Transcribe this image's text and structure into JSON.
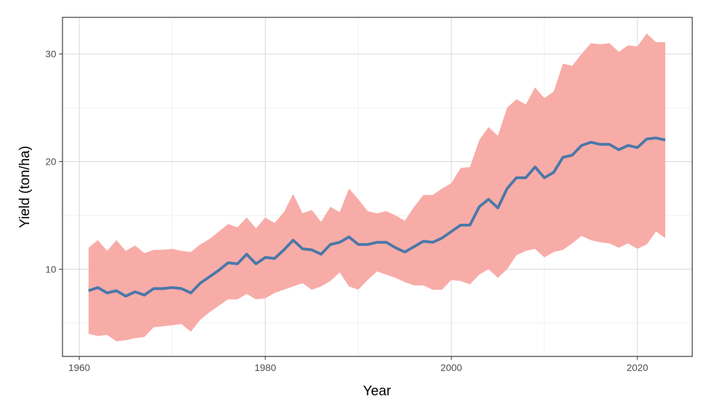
{
  "chart_data": {
    "type": "line",
    "title": "",
    "xlabel": "Year",
    "ylabel": "Yield (ton/ha)",
    "xlim": [
      1958.2,
      2025.9
    ],
    "ylim": [
      1.9,
      33.4
    ],
    "x_ticks": [
      1960,
      1980,
      2000,
      2020
    ],
    "x_tick_labels": [
      "1960",
      "1980",
      "2000",
      "2020"
    ],
    "y_ticks": [
      10,
      20,
      30
    ],
    "y_tick_labels": [
      "10",
      "20",
      "30"
    ],
    "grid": true,
    "legend": "none",
    "x": [
      1961,
      1962,
      1963,
      1964,
      1965,
      1966,
      1967,
      1968,
      1969,
      1970,
      1971,
      1972,
      1973,
      1974,
      1975,
      1976,
      1977,
      1978,
      1979,
      1980,
      1981,
      1982,
      1983,
      1984,
      1985,
      1986,
      1987,
      1988,
      1989,
      1990,
      1991,
      1992,
      1993,
      1994,
      1995,
      1996,
      1997,
      1998,
      1999,
      2000,
      2001,
      2002,
      2003,
      2004,
      2005,
      2006,
      2007,
      2008,
      2009,
      2010,
      2011,
      2012,
      2013,
      2014,
      2015,
      2016,
      2017,
      2018,
      2019,
      2020,
      2021,
      2022,
      2023
    ],
    "series": [
      {
        "name": "mean",
        "color": "#4a78a8",
        "values": [
          8.0,
          8.3,
          7.8,
          8.0,
          7.5,
          7.9,
          7.6,
          8.2,
          8.2,
          8.3,
          8.2,
          7.8,
          8.7,
          9.3,
          9.9,
          10.6,
          10.5,
          11.4,
          10.5,
          11.1,
          11.0,
          11.8,
          12.7,
          11.9,
          11.8,
          11.4,
          12.3,
          12.5,
          13.0,
          12.3,
          12.3,
          12.5,
          12.5,
          12.0,
          11.6,
          12.1,
          12.6,
          12.5,
          12.9,
          13.5,
          14.1,
          14.1,
          15.8,
          16.5,
          15.7,
          17.5,
          18.5,
          18.5,
          19.5,
          18.5,
          19.0,
          20.4,
          20.6,
          21.5,
          21.8,
          21.6,
          21.6,
          21.1,
          21.5,
          21.3,
          22.1,
          22.2,
          22.0
        ]
      },
      {
        "name": "upper",
        "color": "#f8aca8",
        "values": [
          12.0,
          12.7,
          11.7,
          12.7,
          11.7,
          12.2,
          11.5,
          11.8,
          11.8,
          11.9,
          11.7,
          11.6,
          12.3,
          12.8,
          13.5,
          14.2,
          13.9,
          14.8,
          13.8,
          14.8,
          14.3,
          15.3,
          17.0,
          15.2,
          15.5,
          14.4,
          15.8,
          15.3,
          17.5,
          16.5,
          15.4,
          15.2,
          15.4,
          15.0,
          14.5,
          15.8,
          16.9,
          16.9,
          17.5,
          18.0,
          19.4,
          19.5,
          22.0,
          23.2,
          22.4,
          25.0,
          25.8,
          25.3,
          26.9,
          25.9,
          26.5,
          29.1,
          28.9,
          30.0,
          31.0,
          30.9,
          31.0,
          30.2,
          30.8,
          30.7,
          31.9,
          31.1,
          31.1
        ]
      },
      {
        "name": "lower",
        "color": "#f8aca8",
        "values": [
          4.0,
          3.8,
          3.9,
          3.3,
          3.4,
          3.6,
          3.7,
          4.6,
          4.7,
          4.8,
          4.9,
          4.2,
          5.3,
          6.0,
          6.6,
          7.2,
          7.2,
          7.7,
          7.2,
          7.3,
          7.8,
          8.1,
          8.4,
          8.7,
          8.1,
          8.4,
          8.9,
          9.7,
          8.4,
          8.1,
          9.0,
          9.8,
          9.5,
          9.2,
          8.8,
          8.5,
          8.5,
          8.1,
          8.1,
          9.0,
          8.9,
          8.6,
          9.5,
          10.0,
          9.2,
          10.0,
          11.3,
          11.7,
          11.9,
          11.1,
          11.6,
          11.8,
          12.4,
          13.1,
          12.7,
          12.5,
          12.4,
          12.0,
          12.4,
          11.9,
          12.3,
          13.5,
          12.9
        ]
      }
    ]
  }
}
